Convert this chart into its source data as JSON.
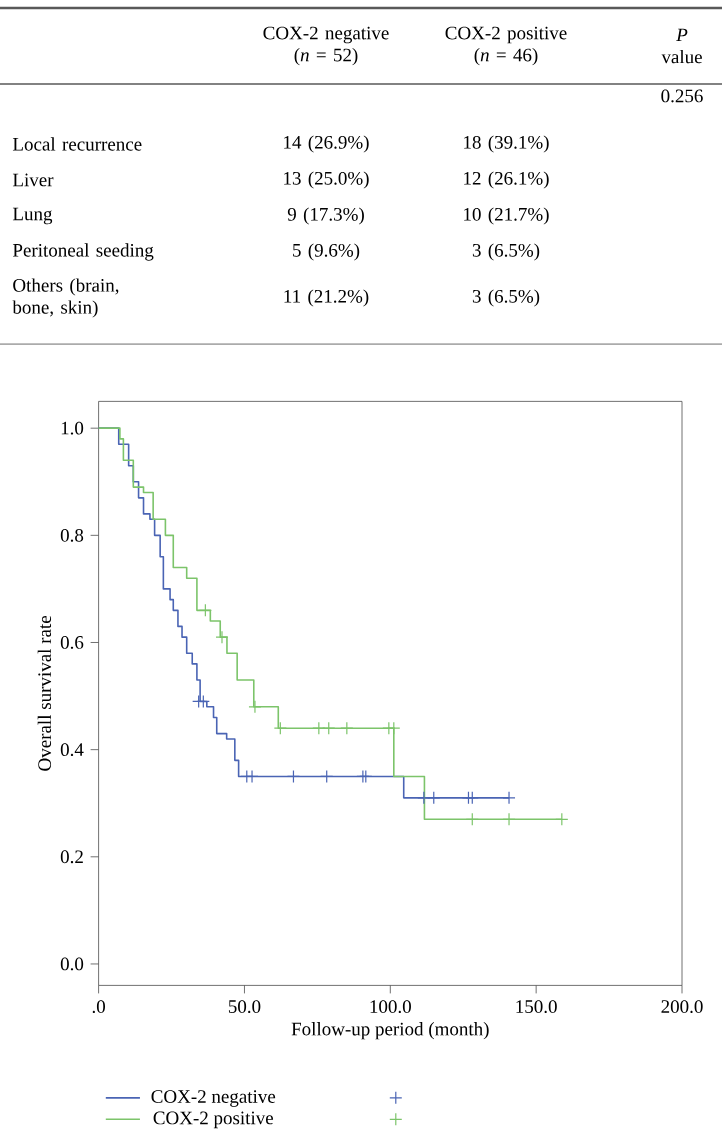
{
  "chart_data": {
    "type": "step",
    "xlabel": "Follow-up period (month)",
    "ylabel": "Overall survival rate",
    "xlim": [
      0,
      200
    ],
    "ylim": [
      -0.04,
      1.05
    ],
    "xticks": [
      {
        "value": 0,
        "label": ".0"
      },
      {
        "value": 50,
        "label": "50.0"
      },
      {
        "value": 100,
        "label": "100.0"
      },
      {
        "value": 150,
        "label": "150.0"
      },
      {
        "value": 200,
        "label": "200.0"
      }
    ],
    "yticks": [
      {
        "value": 0,
        "label": "0.0"
      },
      {
        "value": 0.2,
        "label": "0.2"
      },
      {
        "value": 0.4,
        "label": "0.4"
      },
      {
        "value": 0.6,
        "label": "0.6"
      },
      {
        "value": 0.8,
        "label": "0.8"
      },
      {
        "value": 1,
        "label": "1.0"
      }
    ],
    "legend": "bottom left",
    "grid": false,
    "series": [
      {
        "name": "COX-2 negative",
        "color": "#4a64b4",
        "x": [
          0,
          6.9,
          10.3,
          11.9,
          13.7,
          15.4,
          17.6,
          19.2,
          21.1,
          22.2,
          24.5,
          25.6,
          27.2,
          28.6,
          30.2,
          32.1,
          33.7,
          34.8,
          37.1,
          39.4,
          40.5,
          43.9,
          46.7,
          48,
          104.6,
          140.7
        ],
        "values": [
          1.0,
          0.97,
          0.93,
          0.9,
          0.87,
          0.84,
          0.83,
          0.8,
          0.76,
          0.7,
          0.68,
          0.66,
          0.63,
          0.61,
          0.58,
          0.56,
          0.53,
          0.49,
          0.48,
          0.46,
          0.43,
          0.42,
          0.38,
          0.35,
          0.31,
          0.31
        ]
      },
      {
        "name": "COX-2 positive",
        "color": "#7cc46a",
        "x": [
          0,
          7.3,
          8.5,
          11.9,
          15.4,
          18.7,
          21.1,
          22.9,
          25.6,
          30.2,
          33.7,
          38.3,
          41.7,
          44,
          47.5,
          53.2,
          61.6,
          101.2,
          111.7,
          158.8
        ],
        "values": [
          1.0,
          0.98,
          0.94,
          0.89,
          0.88,
          0.83,
          0.83,
          0.8,
          0.74,
          0.72,
          0.66,
          0.64,
          0.61,
          0.58,
          0.53,
          0.48,
          0.44,
          0.35,
          0.27,
          0.27
        ]
      },
      {
        "type": "scatter",
        "marker": "cross",
        "color": "#4a64b4",
        "x": [
          34.3,
          35.9,
          50.8,
          52.6,
          66.8,
          78.2,
          90.6,
          91.6,
          111.5,
          114.9,
          126.8,
          128.1,
          140.7
        ],
        "values": [
          0.49,
          0.49,
          0.35,
          0.35,
          0.35,
          0.35,
          0.35,
          0.35,
          0.31,
          0.31,
          0.31,
          0.31,
          0.31
        ]
      },
      {
        "type": "scatter",
        "marker": "cross",
        "color": "#7cc46a",
        "x": [
          36.6,
          42.3,
          53.6,
          62.3,
          75.5,
          78.9,
          85.1,
          99.5,
          101.2,
          128.1,
          140.7,
          158.8
        ],
        "values": [
          0.66,
          0.61,
          0.48,
          0.44,
          0.44,
          0.44,
          0.44,
          0.44,
          0.44,
          0.27,
          0.27,
          0.27
        ]
      }
    ],
    "annotations": [
      "COX-2 negative (*n* = 52)",
      "COX-2 positive (*n* = 46)",
      "*P* value",
      "0.256",
      "Local recurrence",
      "14 (26.9%)",
      "18 (39.1%)",
      "Liver",
      "13 (25.0%)",
      "12 (26.1%)",
      "Lung",
      "9 (17.3%)",
      "10 (21.7%)",
      "Peritoneal seeding",
      "5 (9.6%)",
      "3 (6.5%)",
      "Others (brain, bone, skin)",
      "11 (21.2%)",
      "3 (6.5%)"
    ]
  }
}
